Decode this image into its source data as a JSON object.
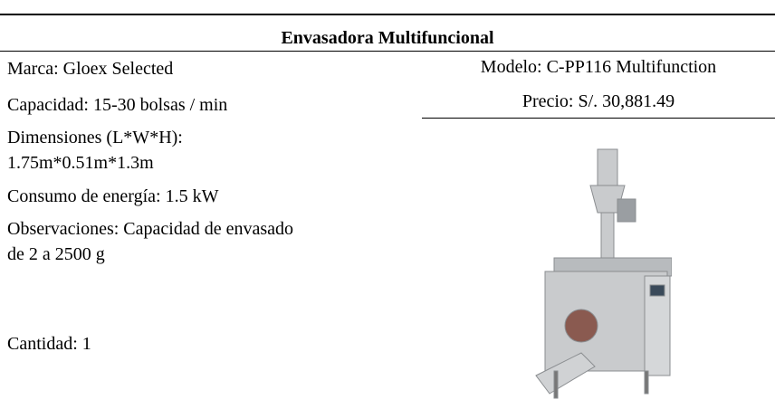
{
  "title": "Envasadora Multifuncional",
  "left": [
    "Marca:  Gloex Selected",
    "Capacidad: 15-30 bolsas / min",
    "Dimensiones (L*W*H):",
    "1.75m*0.51m*1.3m",
    "Consumo de energía: 1.5 kW",
    "Observaciones: Capacidad de envasado",
    "de 2 a 2500 g",
    "Cantidad: 1"
  ],
  "right": [
    "Modelo: C-PP116 Multifunction",
    "Precio: S/. 30,881.49"
  ]
}
